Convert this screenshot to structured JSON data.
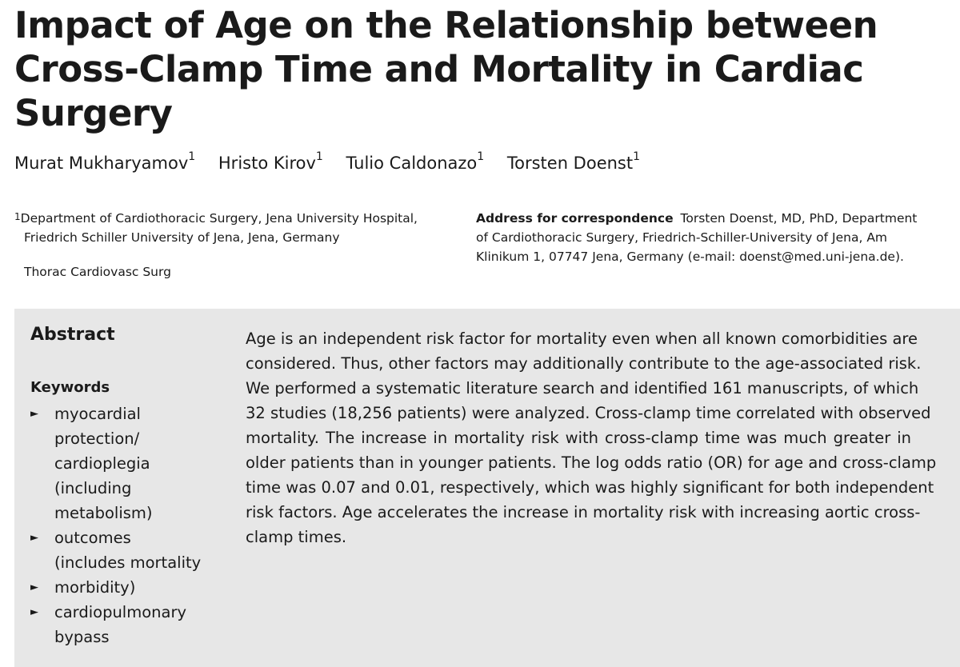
{
  "title_lines": [
    "Impact of Age on the Relationship between",
    "Cross-Clamp Time and Mortality in Cardiac",
    "Surgery"
  ],
  "authors": [
    {
      "name": "Murat Mukharyamov",
      "sup": "1"
    },
    {
      "name": "Hristo Kirov",
      "sup": "1"
    },
    {
      "name": "Tulio Caldonazo",
      "sup": "1"
    },
    {
      "name": "Torsten Doenst",
      "sup": "1"
    }
  ],
  "affiliation": {
    "mark": "1",
    "line1": "Department of Cardiothoracic Surgery, Jena University Hospital,",
    "line2": "Friedrich Schiller University of Jena, Jena, Germany"
  },
  "journal": "Thorac Cardiovasc Surg",
  "correspondence": {
    "label": "Address for correspondence",
    "line1": "Torsten Doenst, MD, PhD, Department",
    "line2": "of Cardiothoracic Surgery, Friedrich-Schiller-University of Jena, Am",
    "line3": "Klinikum 1, 07747 Jena, Germany (e-mail: doenst@med.uni-jena.de)."
  },
  "abstract": {
    "heading": "Abstract",
    "lines": [
      "Age is an independent risk factor for mortality even when all known comorbidities are",
      "considered. Thus, other factors may additionally contribute to the age-associated risk.",
      "We performed a systematic literature search and identified 161 manuscripts, of which",
      "32 studies (18,256 patients) were analyzed. Cross-clamp time correlated with observed",
      "mortality. The increase in mortality risk with cross-clamp time was much greater in",
      "older patients than in younger patients. The log odds ratio (OR) for age and cross-clamp",
      "time was 0.07 and 0.01, respectively, which was highly significant for both independent",
      "risk factors. Age accelerates the increase in mortality risk with increasing aortic cross-",
      "clamp times."
    ]
  },
  "keywords": {
    "heading": "Keywords",
    "bullet": "►",
    "items": [
      {
        "lines": [
          "myocardial",
          "protection/",
          "cardioplegia",
          "(including",
          "metabolism)"
        ]
      },
      {
        "lines": [
          "outcomes",
          "(includes mortality"
        ]
      },
      {
        "lines": [
          "morbidity)"
        ]
      },
      {
        "lines": [
          "cardiopulmonary",
          "bypass"
        ]
      }
    ]
  }
}
